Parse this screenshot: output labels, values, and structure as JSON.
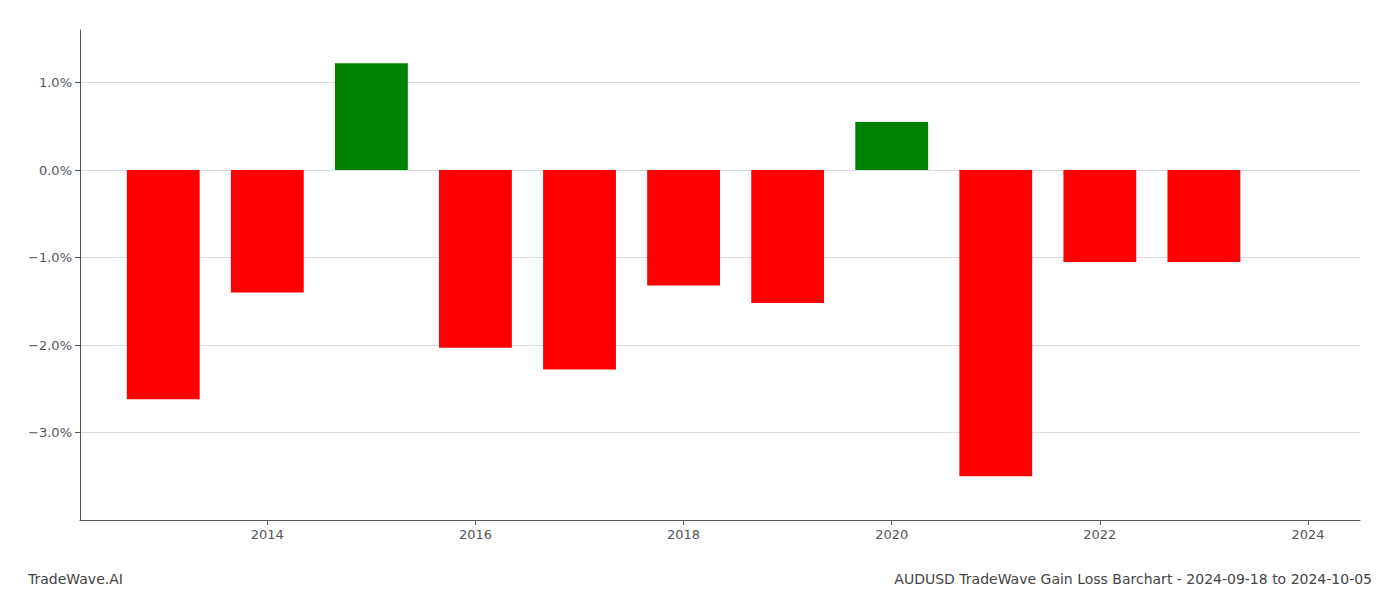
{
  "chart_data": {
    "type": "bar",
    "x": [
      2013,
      2014,
      2015,
      2016,
      2017,
      2018,
      2019,
      2020,
      2021,
      2022,
      2023
    ],
    "values": [
      -2.62,
      -1.4,
      1.22,
      -2.03,
      -2.28,
      -1.32,
      -1.52,
      0.55,
      -3.5,
      -1.05,
      -1.05
    ],
    "colors": [
      "#ff0000",
      "#ff0000",
      "#008000",
      "#ff0000",
      "#ff0000",
      "#ff0000",
      "#ff0000",
      "#008000",
      "#ff0000",
      "#ff0000",
      "#ff0000"
    ],
    "xlim": [
      2012.2,
      2024.5
    ],
    "xticks": [
      2014,
      2016,
      2018,
      2020,
      2022,
      2024
    ],
    "ylim": [
      -4.0,
      1.6
    ],
    "yticks": [
      {
        "value": -3.0,
        "label": "−3.0%"
      },
      {
        "value": -2.0,
        "label": "−2.0%"
      },
      {
        "value": -1.0,
        "label": "−1.0%"
      },
      {
        "value": 0.0,
        "label": "0.0%"
      },
      {
        "value": 1.0,
        "label": "1.0%"
      }
    ],
    "grid": true,
    "annotations": [
      "TradeWave.AI",
      "AUDUSD TradeWave Gain Loss Barchart - 2024-09-18 to 2024-10-05"
    ]
  }
}
